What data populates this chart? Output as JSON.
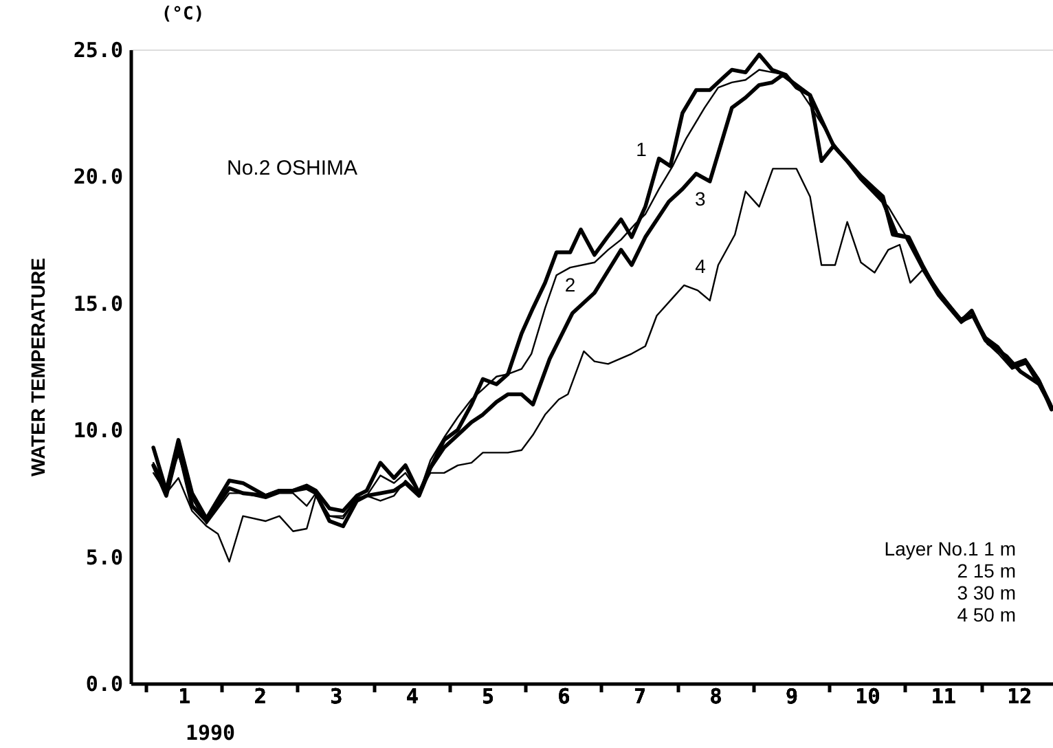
{
  "chart_data": {
    "type": "line",
    "ylabel": "WATER TEMPERATURE",
    "legend": false,
    "grid": false,
    "marker": "none",
    "line_style": "solid",
    "annotations": [
      "No.2 OSHIMA",
      "(°C)",
      "1990",
      "Layer No.1   1 m",
      "2  15 m",
      "3  30 m",
      "4  50 m"
    ],
    "xlim": [
      0.3,
      12.45
    ],
    "xticks": [
      {
        "value": 0.5,
        "label": null
      },
      1,
      {
        "value": 1.5,
        "label": null
      },
      2,
      {
        "value": 2.5,
        "label": null
      },
      3,
      {
        "value": 3.5,
        "label": null
      },
      4,
      {
        "value": 4.5,
        "label": null
      },
      5,
      {
        "value": 5.5,
        "label": null
      },
      6,
      {
        "value": 6.5,
        "label": null
      },
      7,
      {
        "value": 7.5,
        "label": null
      },
      8,
      {
        "value": 8.5,
        "label": null
      },
      9,
      {
        "value": 9.5,
        "label": null
      },
      10,
      {
        "value": 10.5,
        "label": null
      },
      11,
      {
        "value": 11.5,
        "label": null
      },
      12
    ],
    "ylim": [
      0,
      25
    ],
    "yticks": [
      {
        "value": 0,
        "label": "0.0"
      },
      {
        "value": 5,
        "label": "5.0"
      },
      {
        "value": 10,
        "label": "10.0"
      },
      {
        "value": 15,
        "label": "15.0"
      },
      {
        "value": 20,
        "label": "20.0"
      },
      {
        "value": 25,
        "label": "25.0"
      }
    ],
    "series": [
      {
        "name": "1",
        "color": "#000000",
        "x": [
          0.6,
          0.77,
          0.93,
          1.11,
          1.3,
          1.6,
          1.78,
          2.08,
          2.26,
          2.44,
          2.62,
          2.74,
          2.92,
          3.1,
          3.28,
          3.41,
          3.59,
          3.77,
          3.92,
          4.1,
          4.25,
          4.43,
          4.61,
          4.79,
          4.94,
          5.12,
          5.27,
          5.45,
          5.6,
          5.76,
          5.91,
          6.09,
          6.23,
          6.41,
          6.58,
          6.76,
          6.9,
          7.08,
          7.26,
          7.41,
          7.57,
          7.75,
          7.93,
          8.11,
          8.22,
          8.4,
          8.58,
          8.75,
          8.93,
          9.07,
          9.25,
          9.4,
          9.56,
          9.74,
          9.92,
          10.21,
          10.39,
          10.55,
          10.73,
          10.93,
          11.24,
          11.38,
          11.55,
          11.73,
          11.91,
          12.09,
          12.27,
          12.43
        ],
        "values": [
          9.3,
          7.6,
          9.6,
          7.5,
          6.5,
          8.0,
          7.9,
          7.4,
          7.6,
          7.6,
          7.8,
          7.6,
          6.9,
          6.8,
          7.4,
          7.6,
          8.7,
          8.1,
          8.6,
          7.5,
          8.5,
          9.6,
          10.0,
          11.0,
          12.0,
          11.8,
          12.2,
          13.8,
          14.8,
          15.8,
          17.0,
          17.0,
          17.9,
          16.9,
          17.6,
          18.3,
          17.6,
          18.8,
          20.7,
          20.4,
          22.5,
          23.4,
          23.4,
          23.9,
          24.2,
          24.1,
          24.8,
          24.2,
          24.0,
          23.5,
          23.2,
          20.6,
          21.2,
          20.6,
          19.9,
          19.0,
          17.7,
          17.6,
          16.5,
          15.4,
          14.3,
          14.7,
          13.6,
          13.2,
          12.5,
          12.7,
          11.9,
          10.8
        ]
      },
      {
        "name": "2",
        "color": "#000000",
        "x": [
          0.6,
          0.77,
          0.93,
          1.11,
          1.3,
          1.6,
          1.78,
          2.08,
          2.26,
          2.44,
          2.62,
          2.74,
          2.92,
          3.1,
          3.28,
          3.41,
          3.59,
          3.77,
          3.92,
          4.1,
          4.25,
          4.43,
          4.61,
          4.79,
          4.94,
          5.12,
          5.27,
          5.45,
          5.58,
          5.76,
          5.91,
          6.09,
          6.41,
          6.59,
          6.76,
          6.94,
          7.08,
          7.26,
          7.44,
          7.62,
          7.86,
          8.04,
          8.22,
          8.4,
          8.58,
          8.75,
          8.93,
          9.07,
          9.25,
          9.56,
          9.92,
          10.28,
          10.46,
          10.7,
          10.93,
          11.24,
          11.38,
          11.55,
          11.73,
          11.91,
          12.09,
          12.27,
          12.43
        ],
        "values": [
          8.7,
          7.8,
          9.0,
          7.3,
          6.3,
          7.5,
          7.5,
          7.3,
          7.5,
          7.5,
          7.0,
          7.5,
          6.6,
          6.6,
          7.3,
          7.4,
          8.2,
          7.9,
          8.3,
          7.5,
          8.8,
          9.7,
          10.5,
          11.2,
          11.6,
          12.1,
          12.2,
          12.4,
          13.0,
          14.8,
          16.1,
          16.4,
          16.6,
          17.1,
          17.5,
          18.1,
          18.5,
          19.5,
          20.4,
          21.5,
          22.7,
          23.5,
          23.7,
          23.8,
          24.2,
          24.1,
          24.0,
          23.6,
          22.8,
          21.3,
          19.9,
          18.8,
          17.9,
          16.7,
          15.5,
          14.4,
          14.6,
          13.7,
          13.3,
          12.6,
          12.8,
          12.0,
          11.0
        ]
      },
      {
        "name": "3",
        "color": "#000000",
        "x": [
          0.6,
          0.77,
          0.93,
          1.11,
          1.3,
          1.6,
          1.78,
          2.08,
          2.26,
          2.44,
          2.62,
          2.74,
          2.92,
          3.1,
          3.28,
          3.41,
          3.59,
          3.77,
          3.92,
          4.1,
          4.25,
          4.43,
          4.61,
          4.79,
          4.94,
          5.12,
          5.27,
          5.45,
          5.6,
          5.82,
          6.12,
          6.41,
          6.76,
          6.9,
          7.08,
          7.39,
          7.57,
          7.75,
          7.93,
          8.11,
          8.22,
          8.4,
          8.58,
          8.75,
          8.89,
          9.07,
          9.25,
          9.56,
          9.92,
          10.21,
          10.34,
          10.52,
          10.75,
          10.95,
          11.24,
          11.4,
          11.6,
          11.84,
          12.02,
          12.27,
          12.43
        ],
        "values": [
          8.6,
          7.4,
          9.3,
          7.0,
          6.4,
          7.7,
          7.5,
          7.4,
          7.6,
          7.6,
          7.7,
          7.5,
          6.4,
          6.2,
          7.2,
          7.4,
          7.5,
          7.6,
          7.9,
          7.4,
          8.5,
          9.3,
          9.8,
          10.3,
          10.6,
          11.1,
          11.4,
          11.4,
          11.0,
          12.8,
          14.6,
          15.4,
          17.1,
          16.5,
          17.6,
          19.0,
          19.5,
          20.1,
          19.8,
          21.6,
          22.7,
          23.1,
          23.6,
          23.7,
          24.0,
          23.6,
          23.2,
          21.2,
          20.0,
          19.2,
          17.7,
          17.6,
          16.3,
          15.4,
          14.3,
          14.5,
          13.4,
          12.9,
          12.3,
          11.8,
          10.9
        ]
      },
      {
        "name": "4",
        "color": "#000000",
        "x": [
          0.6,
          0.77,
          0.93,
          1.11,
          1.3,
          1.45,
          1.6,
          1.78,
          2.08,
          2.26,
          2.44,
          2.62,
          2.74,
          2.92,
          3.1,
          3.28,
          3.41,
          3.59,
          3.77,
          3.92,
          4.1,
          4.25,
          4.43,
          4.61,
          4.79,
          4.94,
          5.12,
          5.27,
          5.45,
          5.6,
          5.76,
          5.94,
          6.06,
          6.27,
          6.41,
          6.59,
          6.9,
          7.08,
          7.23,
          7.44,
          7.59,
          7.77,
          7.93,
          8.04,
          8.26,
          8.4,
          8.58,
          8.76,
          9.07,
          9.25,
          9.4,
          9.58,
          9.74,
          9.92,
          10.1,
          10.28,
          10.43,
          10.57,
          10.73,
          10.93,
          11.24,
          11.38,
          11.55,
          11.73,
          11.91,
          12.09,
          12.27,
          12.43
        ],
        "values": [
          8.3,
          7.5,
          8.1,
          6.8,
          6.2,
          5.9,
          4.8,
          6.6,
          6.4,
          6.6,
          6.0,
          6.1,
          7.4,
          6.6,
          6.5,
          7.3,
          7.4,
          7.2,
          7.4,
          8.0,
          7.5,
          8.3,
          8.3,
          8.6,
          8.7,
          9.1,
          9.1,
          9.1,
          9.2,
          9.8,
          10.6,
          11.2,
          11.4,
          13.1,
          12.7,
          12.6,
          13.0,
          13.3,
          14.5,
          15.2,
          15.7,
          15.5,
          15.1,
          16.5,
          17.7,
          19.4,
          18.8,
          20.3,
          20.3,
          19.2,
          16.5,
          16.5,
          18.2,
          16.6,
          16.2,
          17.1,
          17.3,
          15.8,
          16.3,
          15.3,
          14.2,
          14.5,
          13.5,
          13.0,
          12.4,
          12.6,
          11.7,
          10.8
        ]
      }
    ]
  }
}
